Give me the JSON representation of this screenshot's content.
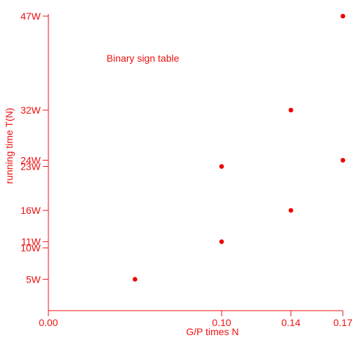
{
  "chart_data": {
    "type": "scatter",
    "annotation": "Binary sign table",
    "xlabel": "G/P times N",
    "ylabel": "running time T(N)",
    "xlim": [
      0.0,
      0.17
    ],
    "ylim": [
      0,
      47
    ],
    "x_ticks": [
      {
        "value": 0.0,
        "label": "0.00"
      },
      {
        "value": 0.1,
        "label": "0.10"
      },
      {
        "value": 0.14,
        "label": "0.14"
      },
      {
        "value": 0.17,
        "label": "0.17"
      }
    ],
    "y_ticks": [
      {
        "value": 5,
        "label": "5W"
      },
      {
        "value": 10,
        "label": "10W"
      },
      {
        "value": 11,
        "label": "11W"
      },
      {
        "value": 16,
        "label": "16W"
      },
      {
        "value": 23,
        "label": "23W"
      },
      {
        "value": 24,
        "label": "24W"
      },
      {
        "value": 32,
        "label": "32W"
      },
      {
        "value": 47,
        "label": "47W"
      }
    ],
    "points": [
      {
        "x": 0.05,
        "y": 5
      },
      {
        "x": 0.1,
        "y": 11
      },
      {
        "x": 0.1,
        "y": 23
      },
      {
        "x": 0.14,
        "y": 16
      },
      {
        "x": 0.14,
        "y": 32
      },
      {
        "x": 0.17,
        "y": 24
      },
      {
        "x": 0.17,
        "y": 47
      }
    ],
    "grid": false,
    "color": "#ee1111"
  }
}
